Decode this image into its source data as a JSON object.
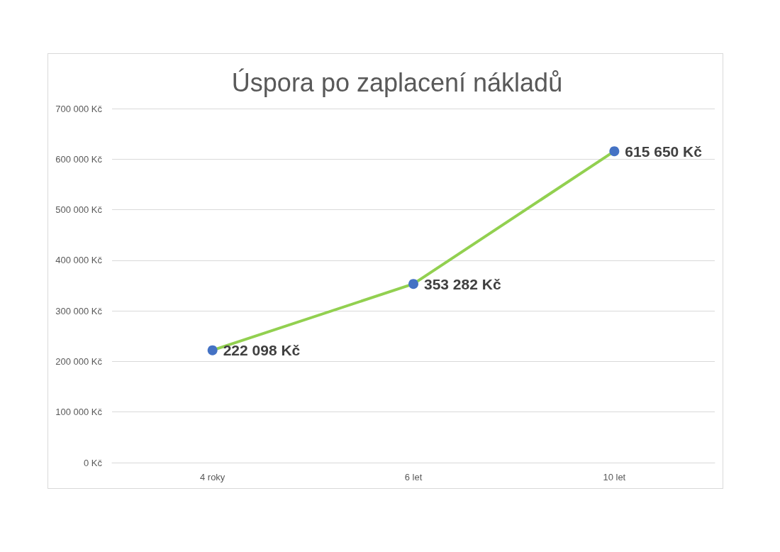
{
  "chart_data": {
    "type": "line",
    "title": "Úspora po zaplacení nákladů",
    "categories": [
      "4 roky",
      "6 let",
      "10 let"
    ],
    "series": [
      {
        "color": "#92d050",
        "colors": [
          "#4472c4",
          "#4472c4",
          "#4472c4"
        ],
        "values": [
          222098,
          353282,
          615650
        ],
        "value_labels": [
          "222 098 Kč",
          "353 282 Kč",
          "615 650 Kč"
        ]
      }
    ],
    "ylim": [
      0,
      700000
    ],
    "yticks": [
      {
        "value": 0,
        "label": "0 Kč"
      },
      {
        "value": 100000,
        "label": "100 000 Kč"
      },
      {
        "value": 200000,
        "label": "200 000 Kč"
      },
      {
        "value": 300000,
        "label": "300 000 Kč"
      },
      {
        "value": 400000,
        "label": "400 000 Kč"
      },
      {
        "value": 500000,
        "label": "500 000 Kč"
      },
      {
        "value": 600000,
        "label": "600 000 Kč"
      },
      {
        "value": 700000,
        "label": "700 000 Kč"
      }
    ],
    "grid": "y",
    "marker": "circle",
    "line_style": "solid"
  }
}
